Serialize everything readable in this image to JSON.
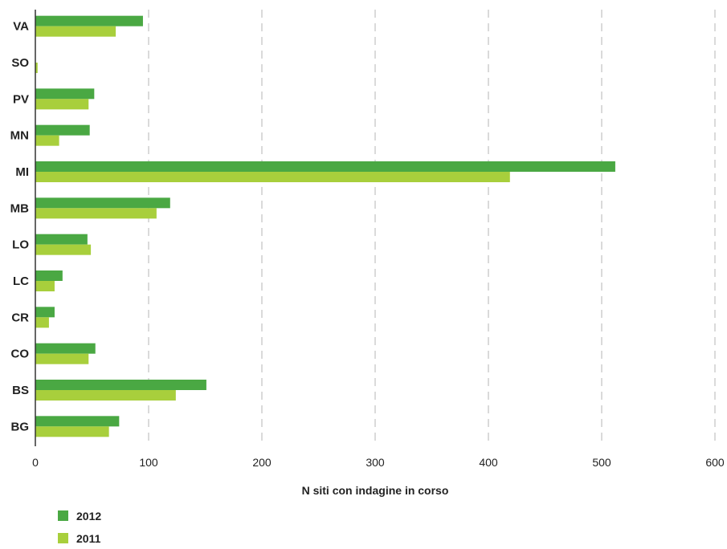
{
  "chart_data": {
    "type": "bar",
    "orientation": "horizontal",
    "categories": [
      "VA",
      "SO",
      "PV",
      "MN",
      "MI",
      "MB",
      "LO",
      "LC",
      "CR",
      "CO",
      "BS",
      "BG"
    ],
    "series": [
      {
        "name": "2012",
        "color": "#4aa843",
        "values": [
          95,
          0,
          52,
          48,
          512,
          119,
          46,
          24,
          17,
          53,
          151,
          74
        ]
      },
      {
        "name": "2011",
        "color": "#a8cf3c",
        "values": [
          71,
          2,
          47,
          21,
          419,
          107,
          49,
          17,
          12,
          47,
          124,
          65
        ]
      }
    ],
    "xlabel": "N siti con indagine in corso",
    "ylabel": "",
    "xlim": [
      0,
      600
    ],
    "xticks": [
      "0",
      "100",
      "200",
      "300",
      "400",
      "500",
      "600"
    ],
    "grid": "vertical dashed",
    "legend_position": "bottom-left"
  }
}
